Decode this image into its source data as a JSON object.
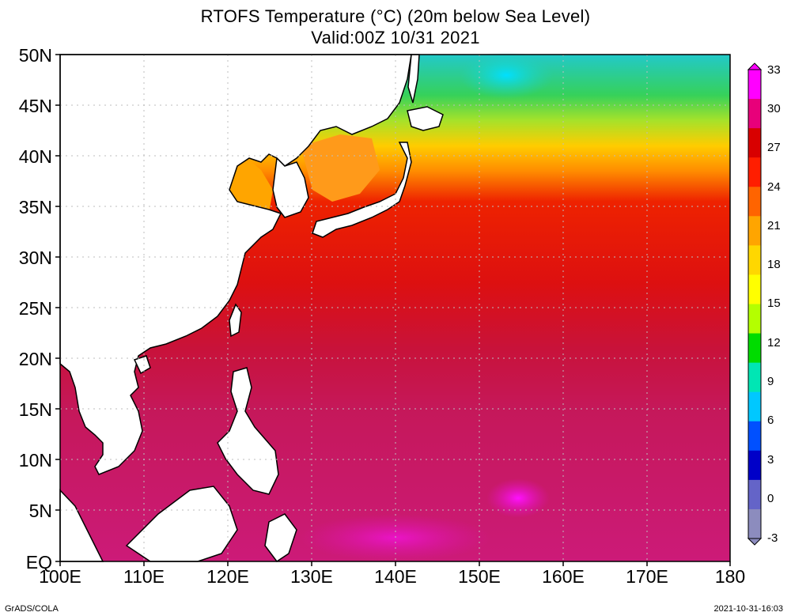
{
  "title": {
    "line1": "RTOFS Temperature (°C) (20m below Sea Level)",
    "line2": "Valid:00Z 10/31 2021"
  },
  "axes": {
    "latitude_labels": [
      "50N",
      "45N",
      "40N",
      "35N",
      "30N",
      "25N",
      "20N",
      "15N",
      "10N",
      "5N",
      "EQ"
    ],
    "longitude_labels": [
      "100E",
      "110E",
      "120E",
      "130E",
      "140E",
      "150E",
      "160E",
      "170E",
      "180"
    ]
  },
  "colorbar": {
    "labels": [
      "33",
      "30",
      "27",
      "24",
      "21",
      "18",
      "15",
      "12",
      "9",
      "6",
      "3",
      "0",
      "-3"
    ],
    "colors": [
      "#ff00ff",
      "#e8007a",
      "#d80000",
      "#ff1e00",
      "#ff6400",
      "#ffa500",
      "#ffd700",
      "#ffff00",
      "#b4ff00",
      "#00dc00",
      "#00e6b4",
      "#00c8ff",
      "#0050ff",
      "#0000c8",
      "#6464c8",
      "#8c8cbe"
    ]
  },
  "footer": {
    "left": "GrADS/COLA",
    "right": "2021-10-31-16:03"
  }
}
